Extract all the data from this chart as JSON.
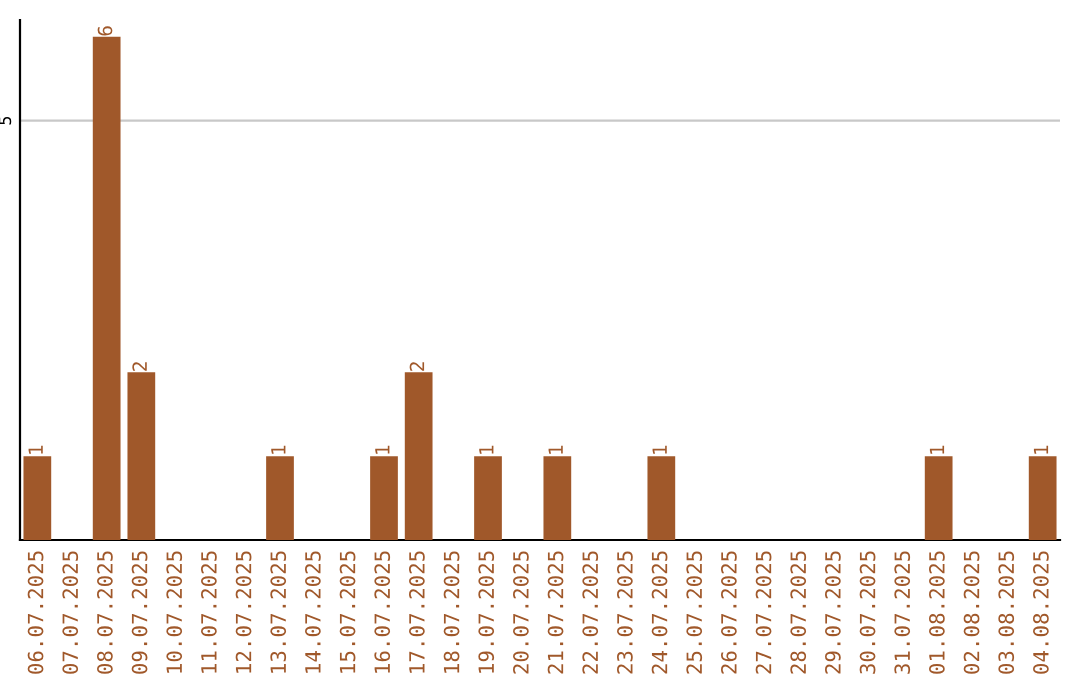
{
  "chart_data": {
    "type": "bar",
    "categories": [
      "06.07.2025",
      "07.07.2025",
      "08.07.2025",
      "09.07.2025",
      "10.07.2025",
      "11.07.2025",
      "12.07.2025",
      "13.07.2025",
      "14.07.2025",
      "15.07.2025",
      "16.07.2025",
      "17.07.2025",
      "18.07.2025",
      "19.07.2025",
      "20.07.2025",
      "21.07.2025",
      "22.07.2025",
      "23.07.2025",
      "24.07.2025",
      "25.07.2025",
      "26.07.2025",
      "27.07.2025",
      "28.07.2025",
      "29.07.2025",
      "30.07.2025",
      "31.07.2025",
      "01.08.2025",
      "02.08.2025",
      "03.08.2025",
      "04.08.2025"
    ],
    "values": [
      1,
      0,
      6,
      2,
      0,
      0,
      0,
      1,
      0,
      0,
      1,
      2,
      0,
      1,
      0,
      1,
      0,
      0,
      1,
      0,
      0,
      0,
      0,
      0,
      0,
      0,
      1,
      0,
      0,
      1
    ],
    "value_labels": [
      "1",
      null,
      "6",
      "2",
      null,
      null,
      null,
      "1",
      null,
      null,
      "1",
      "2",
      null,
      "1",
      null,
      "1",
      null,
      null,
      "1",
      null,
      null,
      null,
      null,
      null,
      null,
      null,
      "1",
      null,
      null,
      "1"
    ],
    "color": "#a0582a",
    "ylim": [
      0,
      6.2
    ],
    "yticks": [
      5
    ],
    "grid": "y"
  }
}
